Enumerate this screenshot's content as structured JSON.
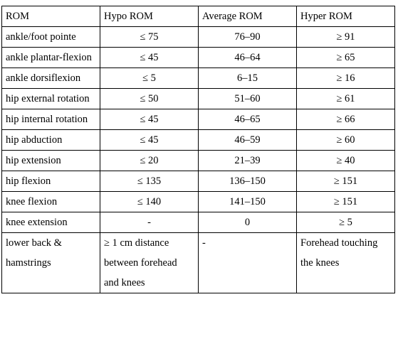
{
  "table": {
    "headers": [
      "ROM",
      "Hypo ROM",
      "Average ROM",
      "Hyper ROM"
    ],
    "rows": [
      {
        "rom": "ankle/foot pointe",
        "hypo": "≤ 75",
        "average": "76–90",
        "hyper": "≥ 91"
      },
      {
        "rom": "ankle plantar-flexion",
        "hypo": "≤ 45",
        "average": "46–64",
        "hyper": "≥ 65"
      },
      {
        "rom": "ankle dorsiflexion",
        "hypo": "≤ 5",
        "average": "6–15",
        "hyper": "≥ 16"
      },
      {
        "rom": "hip external rotation",
        "hypo": "≤ 50",
        "average": "51–60",
        "hyper": "≥ 61"
      },
      {
        "rom": "hip internal rotation",
        "hypo": "≤ 45",
        "average": "46–65",
        "hyper": "≥ 66"
      },
      {
        "rom": "hip abduction",
        "hypo": "≤ 45",
        "average": "46–59",
        "hyper": "≥ 60"
      },
      {
        "rom": "hip extension",
        "hypo": "≤ 20",
        "average": "21–39",
        "hyper": "≥ 40"
      },
      {
        "rom": "hip flexion",
        "hypo": "≤ 135",
        "average": "136–150",
        "hyper": "≥ 151"
      },
      {
        "rom": "knee flexion",
        "hypo": "≤ 140",
        "average": "141–150",
        "hyper": "≥ 151"
      },
      {
        "rom": "knee extension",
        "hypo": "-",
        "average": "0",
        "hyper": "≥ 5"
      },
      {
        "rom": "lower back & hamstrings",
        "hypo": "≥ 1 cm distance between forehead and knees",
        "average": "-",
        "hyper": "Forehead touching the knees"
      }
    ]
  }
}
